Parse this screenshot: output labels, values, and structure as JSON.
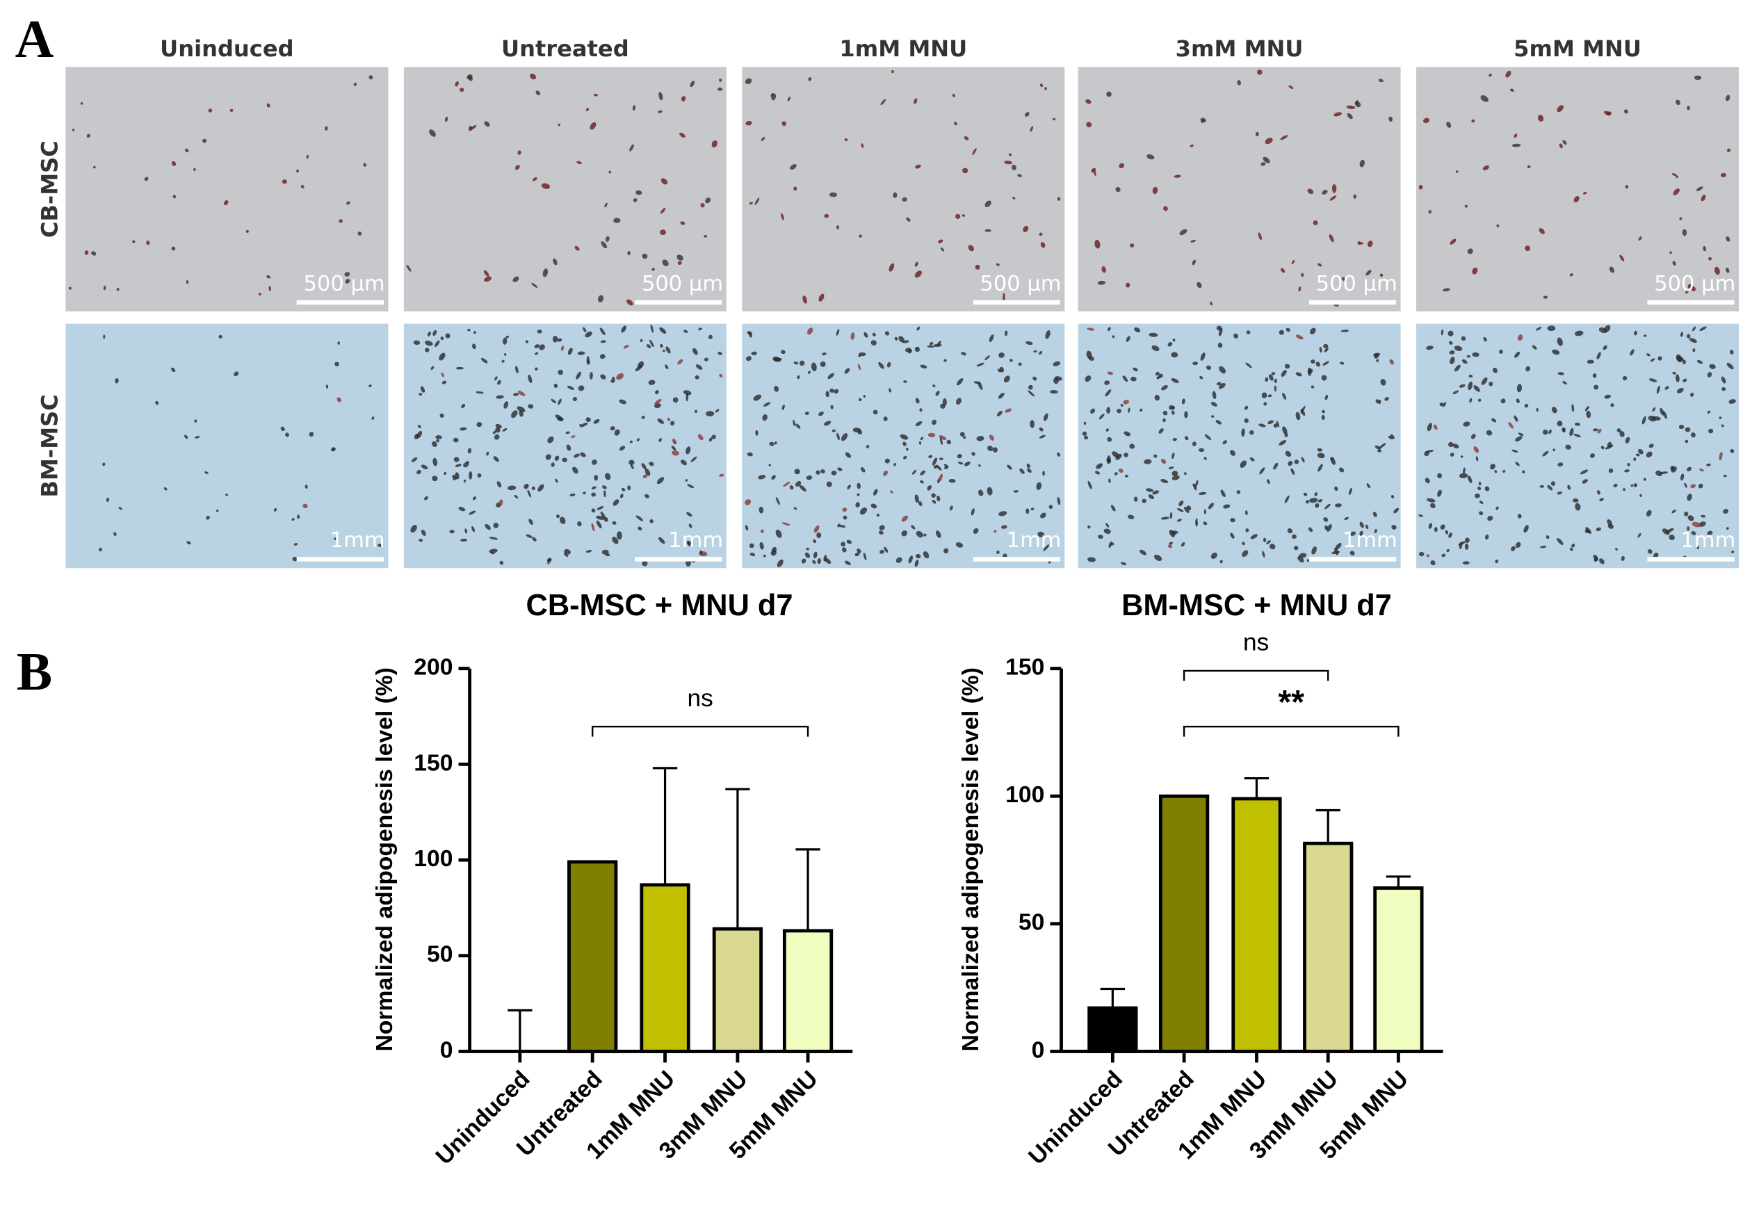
{
  "panel_a": {
    "label": "A",
    "columns": [
      "Uninduced",
      "Untreated",
      "1mM MNU",
      "3mM MNU",
      "5mM MNU"
    ],
    "rows": [
      "CB-MSC",
      "BM-MSC"
    ],
    "scale_bars": [
      "500 µm",
      "1mm"
    ]
  },
  "panel_b_label": "B",
  "chart_data": [
    {
      "type": "bar",
      "title": "CB-MSC + MNU d7",
      "y_label": "Normalized adipogenesis level (%)",
      "categories": [
        "Uninduced",
        "Untreated",
        "1mM MNU",
        "3mM MNU",
        "5mM MNU"
      ],
      "values": [
        0,
        99,
        87,
        64,
        63
      ],
      "errors": [
        21.5,
        0,
        61,
        73,
        42.5
      ],
      "colors": [
        "#000000",
        "#808000",
        "#c0c000",
        "#d8d890",
        "#f0ffc0"
      ],
      "ylim": [
        0,
        200
      ],
      "yticks": [
        0,
        50,
        100,
        150,
        200
      ],
      "annotations": [
        {
          "text": "ns",
          "from": "Untreated",
          "to": "5mM MNU"
        }
      ]
    },
    {
      "type": "bar",
      "title": "BM-MSC + MNU d7",
      "y_label": "Normalized adipogenesis level (%)",
      "categories": [
        "Uninduced",
        "Untreated",
        "1mM MNU",
        "3mM MNU",
        "5mM MNU"
      ],
      "values": [
        17,
        100,
        99,
        81.5,
        64
      ],
      "errors": [
        7.5,
        0,
        8,
        13,
        4.5
      ],
      "colors": [
        "#000000",
        "#808000",
        "#c0c000",
        "#d8d890",
        "#f0ffc0"
      ],
      "ylim": [
        0,
        150
      ],
      "yticks": [
        0,
        50,
        100,
        150
      ],
      "annotations": [
        {
          "text": "ns",
          "from": "Untreated",
          "to": "3mM MNU"
        },
        {
          "text": "**",
          "from": "Untreated",
          "to": "5mM MNU"
        }
      ]
    }
  ]
}
